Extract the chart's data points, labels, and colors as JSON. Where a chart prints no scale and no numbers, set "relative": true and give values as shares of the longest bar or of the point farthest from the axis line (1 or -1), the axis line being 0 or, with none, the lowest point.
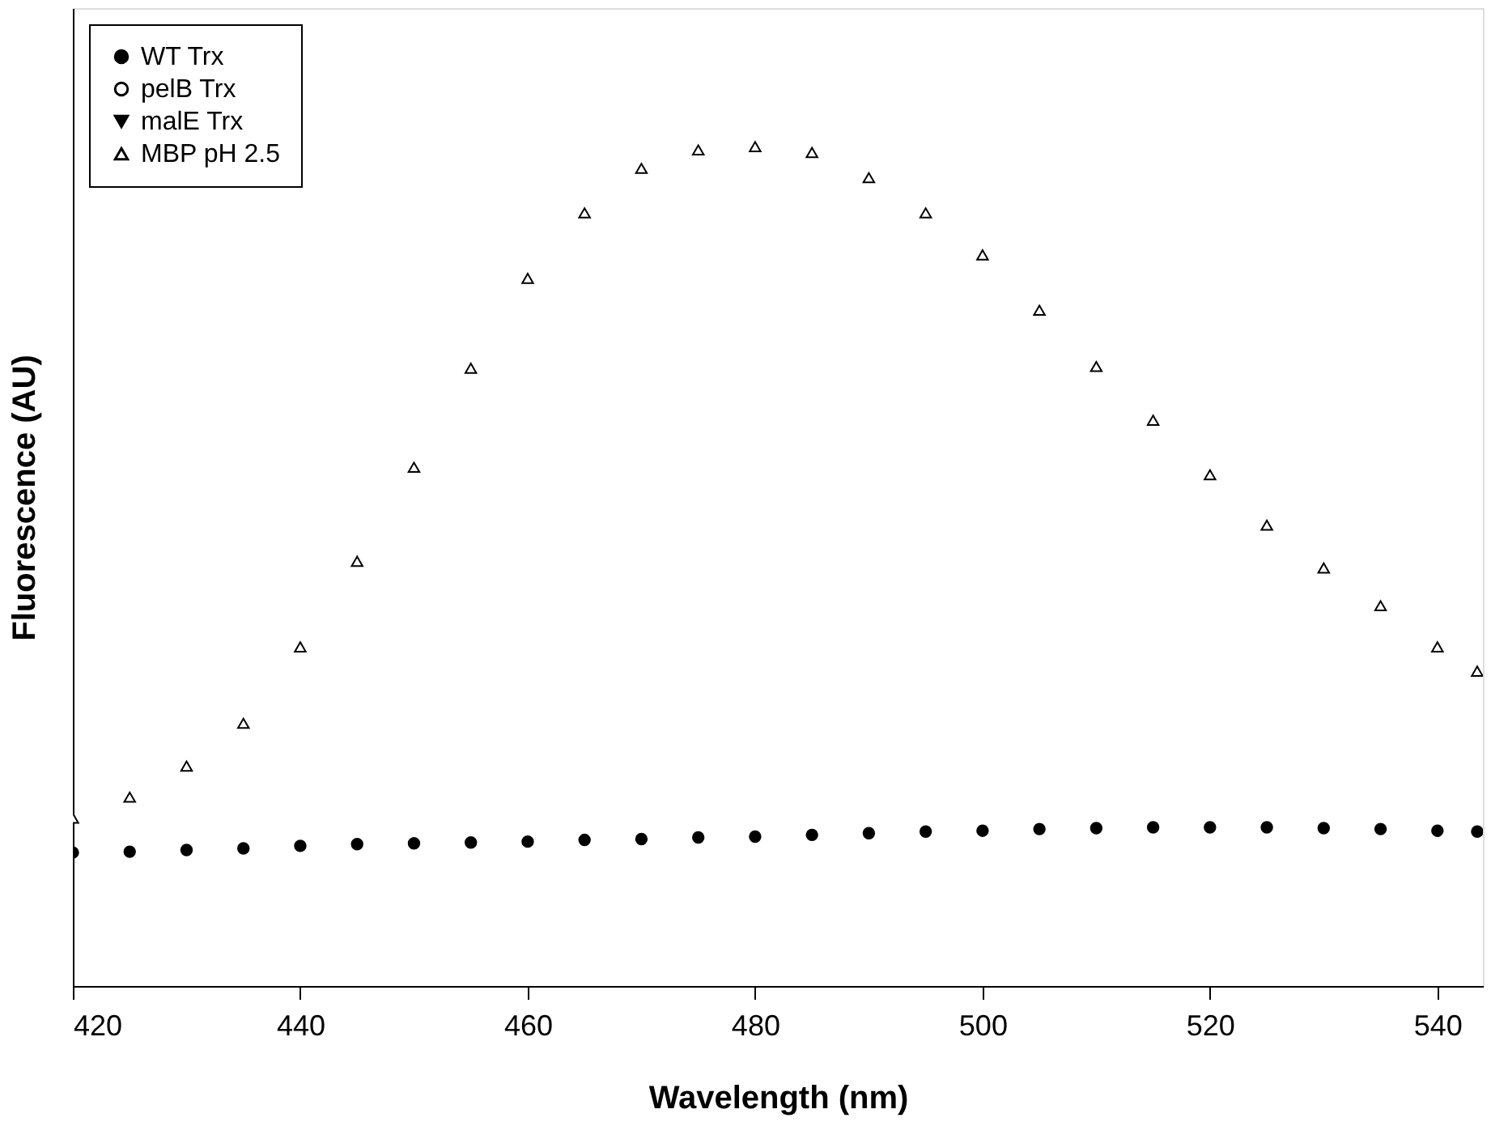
{
  "chart_data": {
    "type": "scatter",
    "relative": true,
    "xlabel": "Wavelength (nm)",
    "ylabel": "Fluorescence (AU)",
    "xlim": [
      420,
      544
    ],
    "xticks": [
      420,
      440,
      460,
      480,
      500,
      520,
      540
    ],
    "grid": false,
    "legend": "top left",
    "tick_labels": "x",
    "x": [
      420,
      425,
      430,
      435,
      440,
      445,
      450,
      455,
      460,
      465,
      470,
      475,
      480,
      485,
      490,
      495,
      500,
      505,
      510,
      515,
      520,
      525,
      530,
      535,
      540,
      543.5
    ],
    "series": [
      {
        "name": "WT Trx",
        "color": "#000000",
        "marker": "circle",
        "values": [
          0.159,
          0.16,
          0.162,
          0.164,
          0.167,
          0.169,
          0.17,
          0.171,
          0.172,
          0.174,
          0.175,
          0.177,
          0.178,
          0.18,
          0.182,
          0.184,
          0.185,
          0.187,
          0.188,
          0.189,
          0.189,
          0.189,
          0.188,
          0.187,
          0.185,
          0.184
        ]
      },
      {
        "name": "pelB Trx",
        "color": "#ffffff",
        "marker": "circle",
        "values": [
          null,
          null,
          null,
          null,
          null,
          null,
          null,
          null,
          null,
          null,
          null,
          null,
          null,
          null,
          null,
          null,
          null,
          null,
          null,
          null,
          null,
          null,
          null,
          null,
          null,
          null
        ]
      },
      {
        "name": "malE Trx",
        "color": "#000000",
        "marker": "triangle-down",
        "values": [
          null,
          null,
          null,
          null,
          null,
          null,
          null,
          null,
          null,
          null,
          null,
          null,
          null,
          null,
          null,
          null,
          null,
          null,
          null,
          null,
          null,
          null,
          null,
          null,
          null,
          null
        ]
      },
      {
        "name": "MBP pH 2.5",
        "color": "#ffffff",
        "marker": "triangle",
        "values": [
          0.2,
          0.225,
          0.262,
          0.313,
          0.404,
          0.506,
          0.618,
          0.736,
          0.843,
          0.921,
          0.974,
          0.996,
          1.0,
          0.993,
          0.963,
          0.921,
          0.871,
          0.805,
          0.738,
          0.674,
          0.609,
          0.549,
          0.498,
          0.453,
          0.404,
          0.375
        ]
      }
    ]
  }
}
